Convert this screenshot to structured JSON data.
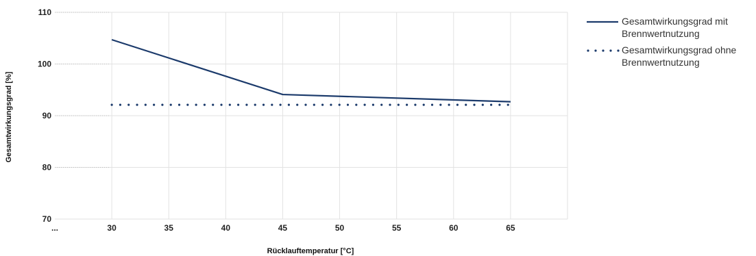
{
  "chart_data": {
    "type": "line",
    "xlabel": "Rücklauftemperatur [°C]",
    "ylabel": "Gesamtwirkungsgrad [%]",
    "x_ticks": [
      "...",
      "30",
      "35",
      "40",
      "45",
      "50",
      "55",
      "60",
      "65"
    ],
    "x_tick_values": [
      25,
      30,
      35,
      40,
      45,
      50,
      55,
      60,
      65
    ],
    "xlim": [
      25,
      70
    ],
    "y_ticks": [
      70,
      80,
      90,
      100,
      110
    ],
    "ylim": [
      70,
      110
    ],
    "grid": true,
    "legend_position": "right",
    "series": [
      {
        "name": "Gesamtwirkungsgrad mit Brennwertnutzung",
        "legend_lines": [
          "Gesamtwirkungsgrad mit",
          "Brennwertnutzung"
        ],
        "style": "solid",
        "color": "#1b3a6b",
        "x": [
          30,
          45,
          65
        ],
        "y": [
          104.7,
          94.1,
          92.7
        ]
      },
      {
        "name": "Gesamtwirkungsgrad ohne Brennwertnutzung",
        "legend_lines": [
          "Gesamtwirkungsgrad ohne",
          "Brennwertnutzung"
        ],
        "style": "dotted",
        "color": "#1b3a6b",
        "x": [
          30,
          65
        ],
        "y": [
          92.1,
          92.1
        ]
      }
    ]
  }
}
